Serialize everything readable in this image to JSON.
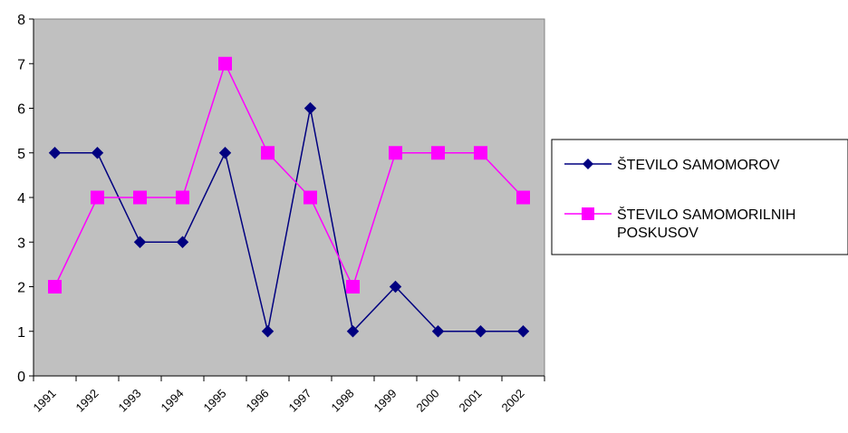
{
  "chart_data": {
    "type": "line",
    "categories": [
      "1991",
      "1992",
      "1993",
      "1994",
      "1995",
      "1996",
      "1997",
      "1998",
      "1999",
      "2000",
      "2001",
      "2002"
    ],
    "series": [
      {
        "name": "ŠTEVILO SAMOMOROV",
        "values": [
          5,
          5,
          3,
          3,
          5,
          1,
          6,
          1,
          2,
          1,
          1,
          1
        ],
        "color": "#000080",
        "marker": "diamond"
      },
      {
        "name_lines": [
          "ŠTEVILO SAMOMORILNIH",
          "POSKUSOV"
        ],
        "values": [
          2,
          4,
          4,
          4,
          7,
          5,
          4,
          2,
          5,
          5,
          5,
          4
        ],
        "color": "#FF00FF",
        "marker": "square"
      }
    ],
    "ylim": [
      0,
      8
    ],
    "yticks": [
      0,
      1,
      2,
      3,
      4,
      5,
      6,
      7,
      8
    ],
    "plot_background": "#C0C0C0",
    "legend_position": "right",
    "grid": false
  }
}
